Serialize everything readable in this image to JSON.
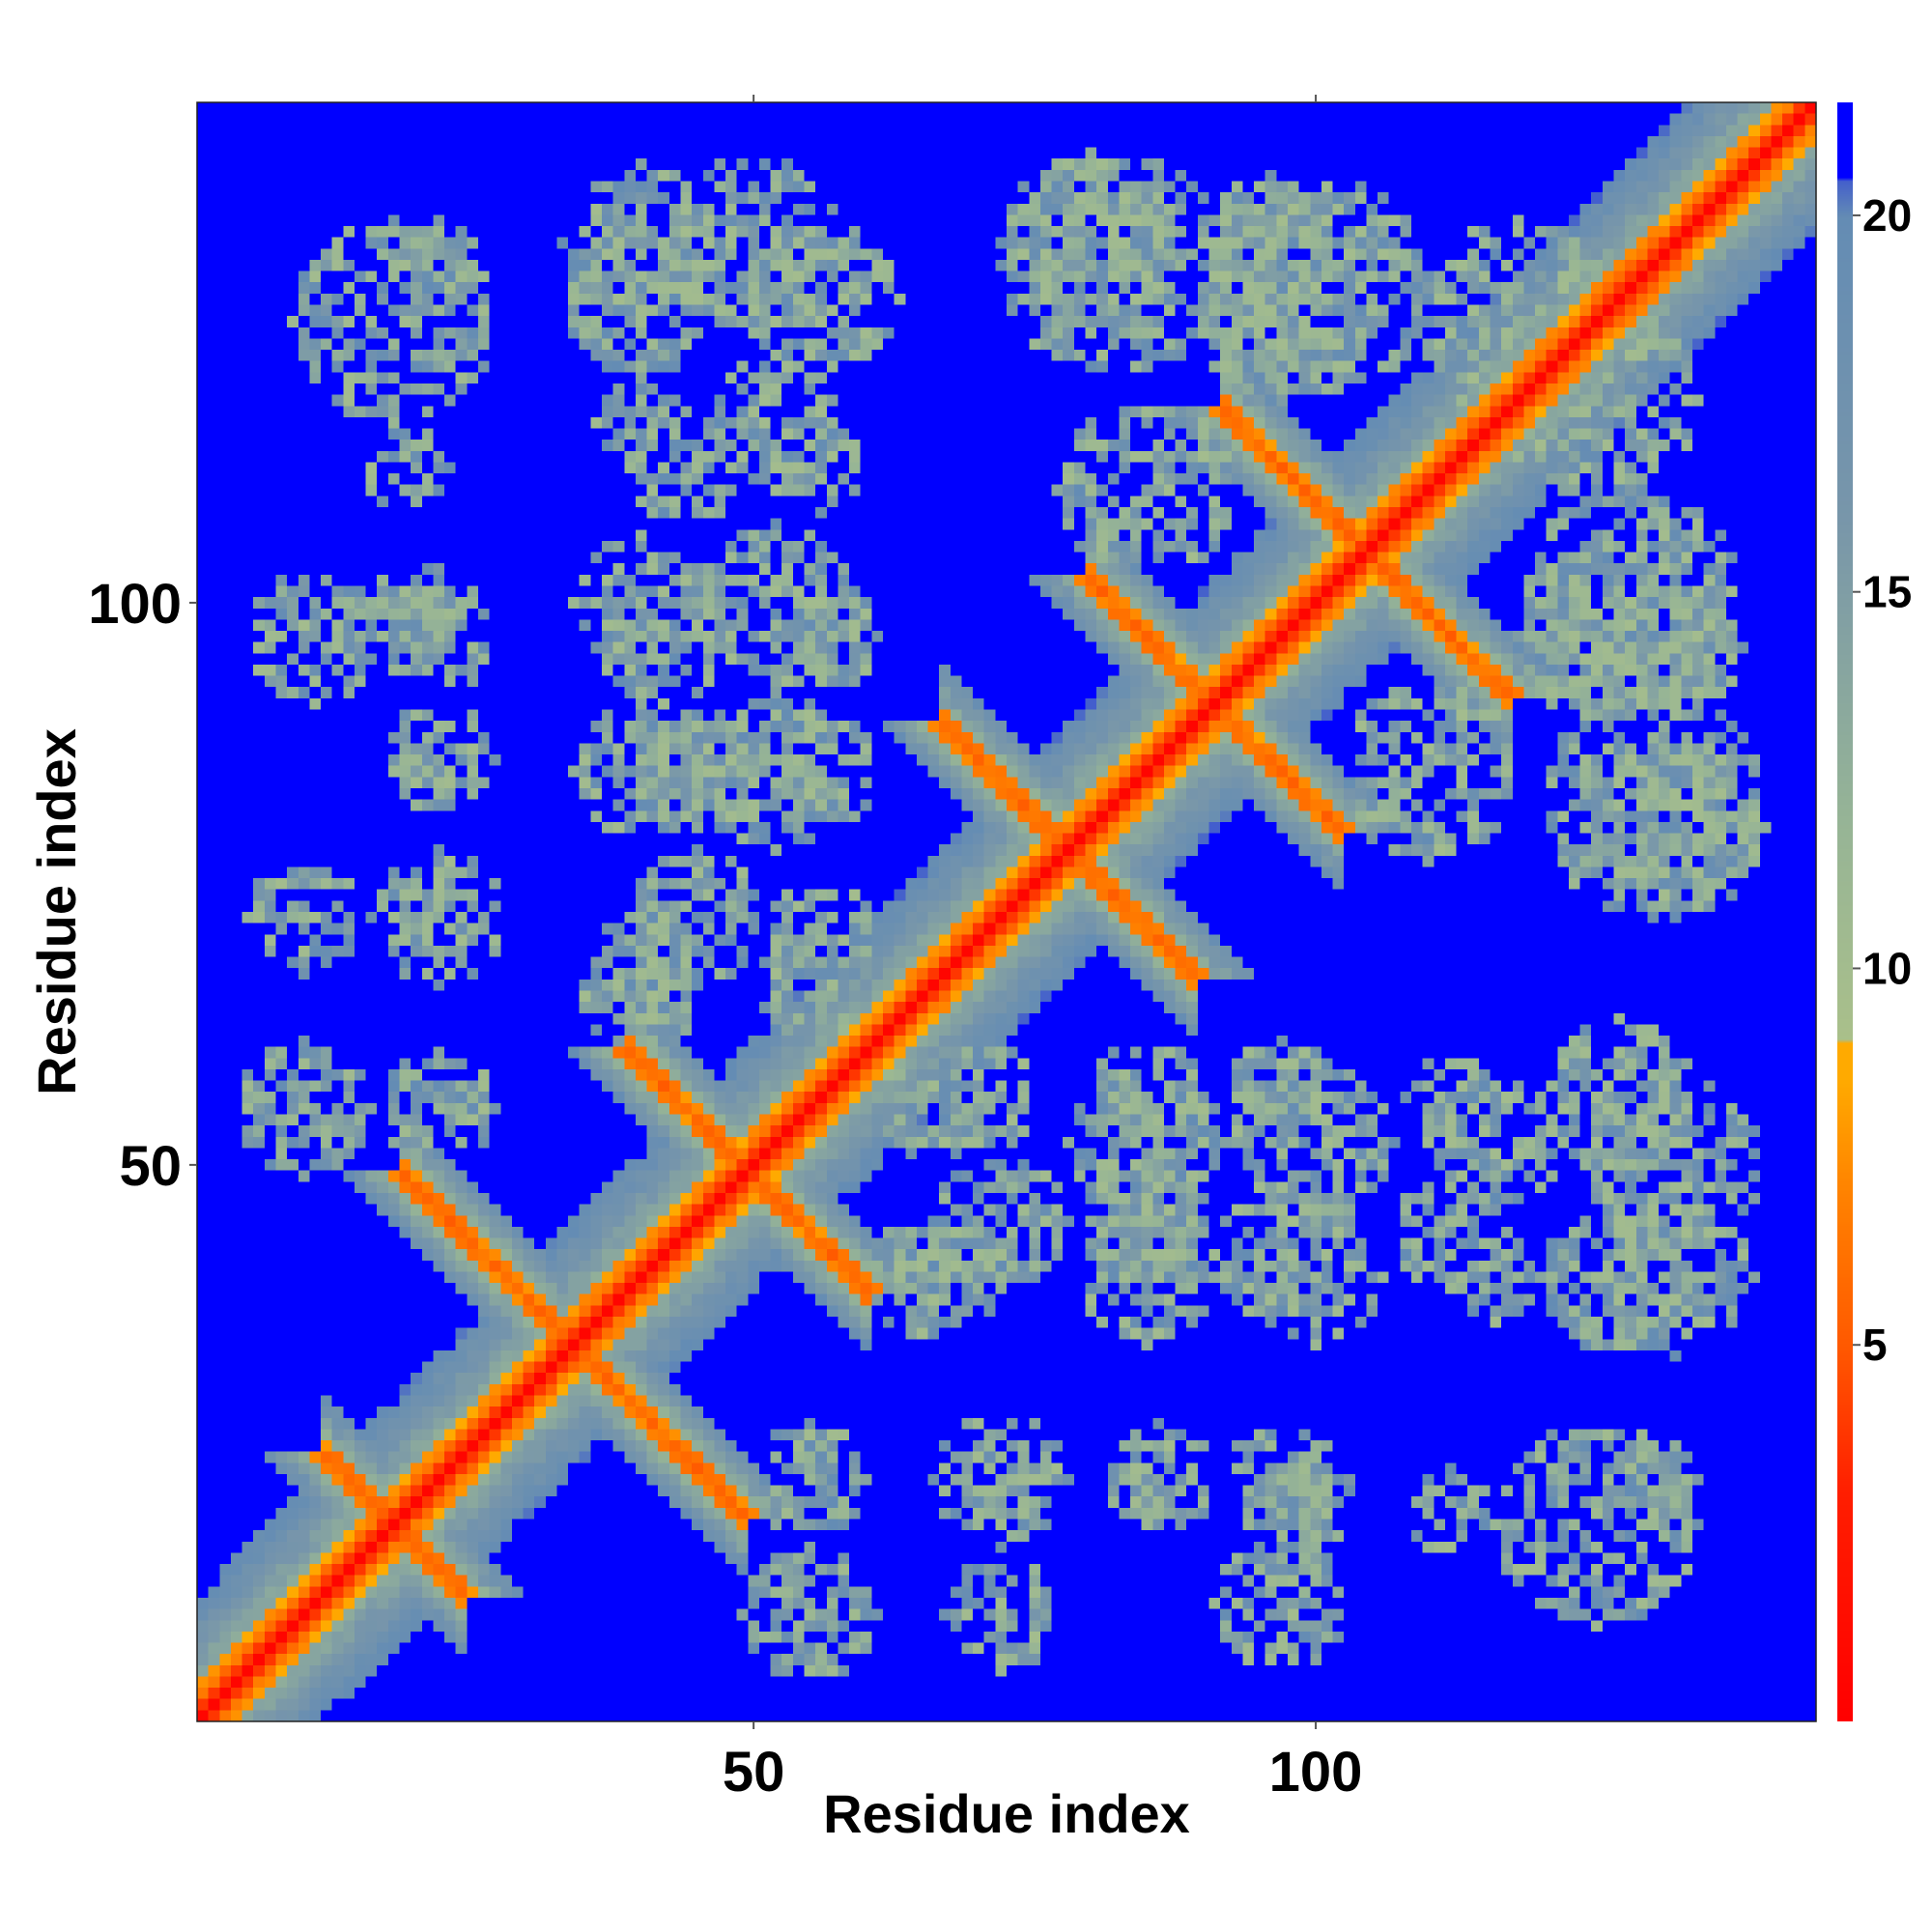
{
  "chart_data": {
    "type": "heatmap",
    "title": "",
    "xlabel": "Residue index",
    "ylabel": "Residue index",
    "n_residues": 144,
    "xlim": [
      1,
      144
    ],
    "ylim": [
      1,
      144
    ],
    "x_ticks": [
      50,
      100
    ],
    "y_ticks": [
      50,
      100
    ],
    "x_tick_labels": [
      "50",
      "100"
    ],
    "y_tick_labels": [
      "50",
      "100"
    ],
    "colorbar": {
      "range": [
        0,
        21.5
      ],
      "ticks": [
        5,
        10,
        15,
        20
      ],
      "tick_labels": [
        "5",
        "10",
        "15",
        "20"
      ],
      "colors": [
        "#ff0000",
        "#ff3300",
        "#ff6600",
        "#ff9900",
        "#ffcc00",
        "#a8c08a",
        "#8fae9e",
        "#6a8cb0",
        "#0000ff"
      ]
    },
    "matrix_description": "Symmetric residue-residue distance map; values are distances (0 = red on the diagonal, >20 = blue background).",
    "secondary_structure_contacts": [
      {
        "kind": "diagonal",
        "from": [
          1,
          1
        ],
        "to": [
          144,
          144
        ]
      },
      {
        "kind": "antiparallel",
        "from": [
          12,
          24
        ],
        "to": [
          24,
          12
        ]
      },
      {
        "kind": "antiparallel",
        "from": [
          19,
          49
        ],
        "to": [
          49,
          19
        ]
      },
      {
        "kind": "antiparallel",
        "from": [
          39,
          60
        ],
        "to": [
          60,
          39
        ]
      },
      {
        "kind": "antiparallel",
        "from": [
          67,
          89
        ],
        "to": [
          89,
          67
        ]
      },
      {
        "kind": "antiparallel",
        "from": [
          80,
          102
        ],
        "to": [
          102,
          80
        ]
      },
      {
        "kind": "antiparallel",
        "from": [
          92,
          117
        ],
        "to": [
          117,
          92
        ]
      }
    ]
  }
}
